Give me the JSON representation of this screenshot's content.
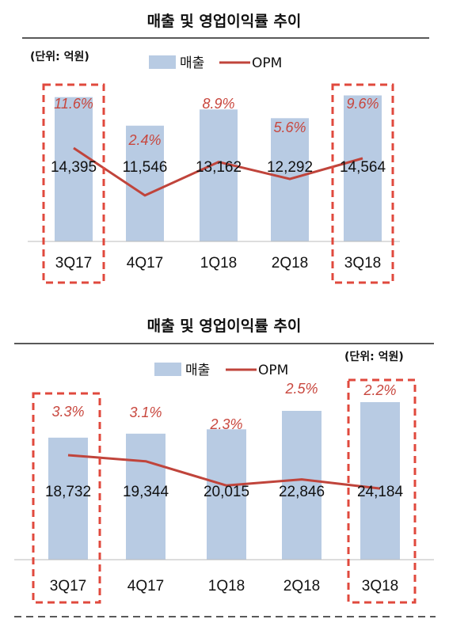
{
  "colors": {
    "bar": "#b8cbe3",
    "line": "#c0443b",
    "highlight": "#e0493d",
    "rule": "#222222"
  },
  "chart_data": [
    {
      "type": "bar",
      "title": "매출 및 영업이익률 추이",
      "unit": "(단위: 억원)",
      "legend": [
        "매출",
        "OPM"
      ],
      "categories": [
        "3Q17",
        "4Q17",
        "1Q18",
        "2Q18",
        "3Q18"
      ],
      "series": [
        {
          "name": "매출",
          "type": "bar",
          "values": [
            14395,
            11546,
            13162,
            12292,
            14564
          ],
          "labels": [
            "14,395",
            "11,546",
            "13,162",
            "12,292",
            "14,564"
          ]
        },
        {
          "name": "OPM",
          "type": "line",
          "values": [
            11.6,
            2.4,
            8.9,
            5.6,
            9.6
          ],
          "labels": [
            "11.6%",
            "2.4%",
            "8.9%",
            "5.6%",
            "9.6%"
          ]
        }
      ],
      "highlighted": [
        "3Q17",
        "3Q18"
      ]
    },
    {
      "type": "bar",
      "title": "매출 및 영업이익률 추이",
      "unit": "(단위: 억원)",
      "legend": [
        "매출",
        "OPM"
      ],
      "categories": [
        "3Q17",
        "4Q17",
        "1Q18",
        "2Q18",
        "3Q18"
      ],
      "series": [
        {
          "name": "매출",
          "type": "bar",
          "values": [
            18732,
            19344,
            20015,
            22846,
            24184
          ],
          "labels": [
            "18,732",
            "19,344",
            "20,015",
            "22,846",
            "24,184"
          ]
        },
        {
          "name": "OPM",
          "type": "line",
          "values": [
            3.3,
            3.1,
            2.3,
            2.5,
            2.2
          ],
          "labels": [
            "3.3%",
            "3.1%",
            "2.3%",
            "2.5%",
            "2.2%"
          ]
        }
      ],
      "highlighted": [
        "3Q17",
        "3Q18"
      ]
    }
  ]
}
